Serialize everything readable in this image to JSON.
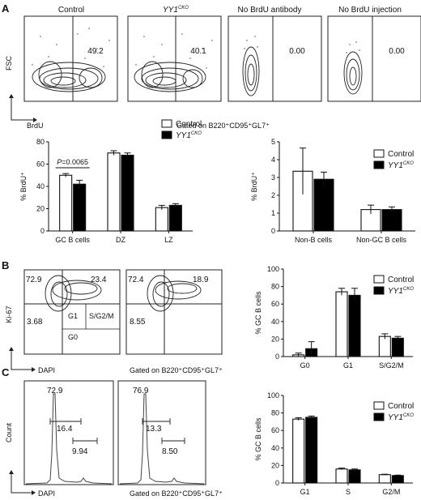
{
  "panel_letters": [
    "A",
    "B",
    "C"
  ],
  "flow_a": {
    "column_titles": [
      "Control",
      "YY1",
      "No BrdU antibody",
      "No BrdU injection"
    ],
    "cko_superscript": "CKO",
    "gate_values": [
      "49.2",
      "40.1",
      "0.00",
      "0.00"
    ],
    "y_axis_label": "FSC",
    "x_axis_label": "BrdU",
    "gated_label": "Gated on B220⁺CD95⁺GL7⁺"
  },
  "flow_b": {
    "plot1_quadrants": {
      "top_left": "72.9",
      "top_right": "23.4",
      "bottom_left": "3.68"
    },
    "plot2_quadrants": {
      "top_left": "72.4",
      "top_right": "18.9",
      "bottom_left": "8.55"
    },
    "phase_labels": {
      "g1": "G1",
      "sg2m": "S/G2/M",
      "g0": "G0"
    },
    "y_axis_label": "Ki-67",
    "x_axis_label": "DAPI",
    "gated_label": "Gated on B220⁺CD95⁺GL7⁺"
  },
  "flow_c": {
    "plot1": {
      "peak": "72.9",
      "s": "16.4",
      "g2m": "9.94"
    },
    "plot2": {
      "peak": "76.9",
      "s": "13.3",
      "g2m": "8.50"
    },
    "y_axis_label": "Count",
    "x_axis_label": "DAPI",
    "gated_label": "Gated on B220⁺CD95⁺GL7⁺"
  },
  "legend": {
    "control": "Control",
    "cko": "YY1",
    "cko_superscript": "CKO",
    "control_color": "#ffffff",
    "cko_color": "#000000"
  },
  "chart_data": [
    {
      "id": "brdu_gc",
      "type": "bar",
      "categories": [
        "GC B cells",
        "DZ",
        "LZ"
      ],
      "series": [
        {
          "name": "Control",
          "values": [
            50,
            70,
            21
          ],
          "errors": [
            1.5,
            2,
            2
          ]
        },
        {
          "name": "YY1 CKO",
          "values": [
            42,
            68,
            23
          ],
          "errors": [
            3.5,
            2,
            1.5
          ]
        }
      ],
      "ylim": [
        0,
        80
      ],
      "yticks": [
        0,
        20,
        40,
        60,
        80
      ],
      "ylabel": "% BrdU⁺",
      "annotation": "P=0.0065",
      "legend_position": "top-right"
    },
    {
      "id": "brdu_nongc",
      "type": "bar",
      "categories": [
        "Non-B cells",
        "Non-GC B cells"
      ],
      "series": [
        {
          "name": "Control",
          "values": [
            3.35,
            1.2
          ],
          "errors": [
            1.3,
            0.25
          ]
        },
        {
          "name": "YY1 CKO",
          "values": [
            2.9,
            1.2
          ],
          "errors": [
            0.4,
            0.15
          ]
        }
      ],
      "ylim": [
        0,
        5
      ],
      "yticks": [
        0,
        1,
        2,
        3,
        4,
        5
      ],
      "ylabel": "% BrdU⁺",
      "legend_position": "top-right"
    },
    {
      "id": "ki67_cycle",
      "type": "bar",
      "categories": [
        "G0",
        "G1",
        "S/G2/M"
      ],
      "series": [
        {
          "name": "Control",
          "values": [
            2,
            74,
            23
          ],
          "errors": [
            2,
            4,
            3
          ]
        },
        {
          "name": "YY1 CKO",
          "values": [
            9,
            70,
            21
          ],
          "errors": [
            8,
            8,
            2
          ]
        }
      ],
      "ylim": [
        0,
        100
      ],
      "yticks": [
        0,
        20,
        40,
        60,
        80,
        100
      ],
      "ylabel": "% GC B cells",
      "legend_position": "top-right"
    },
    {
      "id": "dapi_cycle",
      "type": "bar",
      "categories": [
        "G1",
        "S",
        "G2/M"
      ],
      "series": [
        {
          "name": "Control",
          "values": [
            73,
            16,
            9.5
          ],
          "errors": [
            1.5,
            1,
            0.5
          ]
        },
        {
          "name": "YY1 CKO",
          "values": [
            75,
            15,
            8.5
          ],
          "errors": [
            1.5,
            1,
            0.5
          ]
        }
      ],
      "ylim": [
        0,
        100
      ],
      "yticks": [
        0,
        20,
        40,
        60,
        80,
        100
      ],
      "ylabel": "% GC B cells",
      "legend_position": "top-right"
    }
  ]
}
